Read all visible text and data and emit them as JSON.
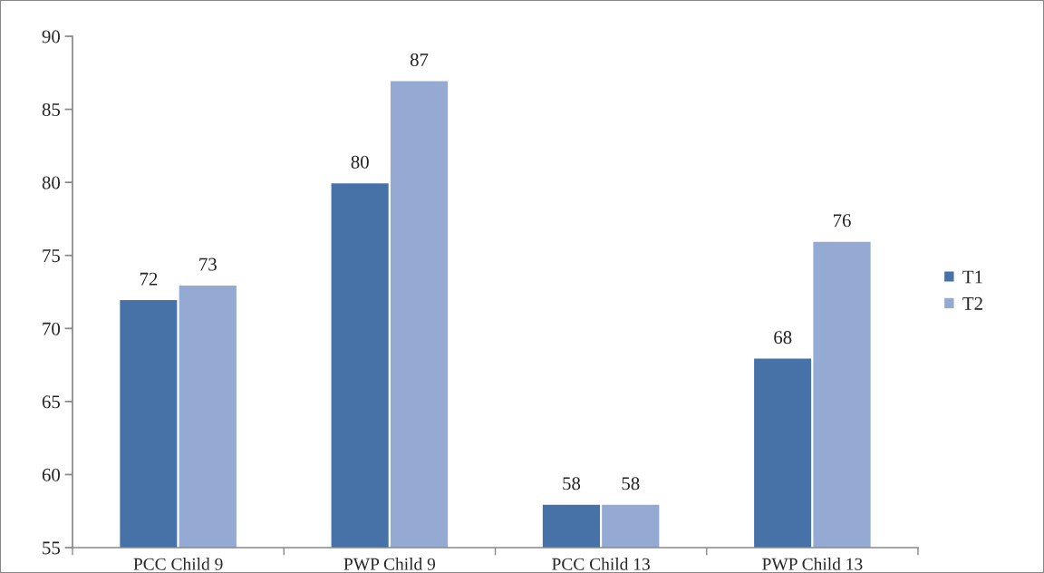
{
  "chart_data": {
    "type": "bar",
    "categories": [
      "PCC Child 9",
      "PWP Child 9",
      "PCC Child 13",
      "PWP Child 13"
    ],
    "series": [
      {
        "name": "T1",
        "color": "#4672a7",
        "values": [
          72,
          80,
          58,
          68
        ]
      },
      {
        "name": "T2",
        "color": "#95aad2",
        "values": [
          73,
          87,
          58,
          76
        ]
      }
    ],
    "ylim": [
      55,
      90
    ],
    "yticks": [
      55,
      60,
      65,
      70,
      75,
      80,
      85,
      90
    ],
    "data_labels": true,
    "grid": false,
    "legend": "right"
  }
}
